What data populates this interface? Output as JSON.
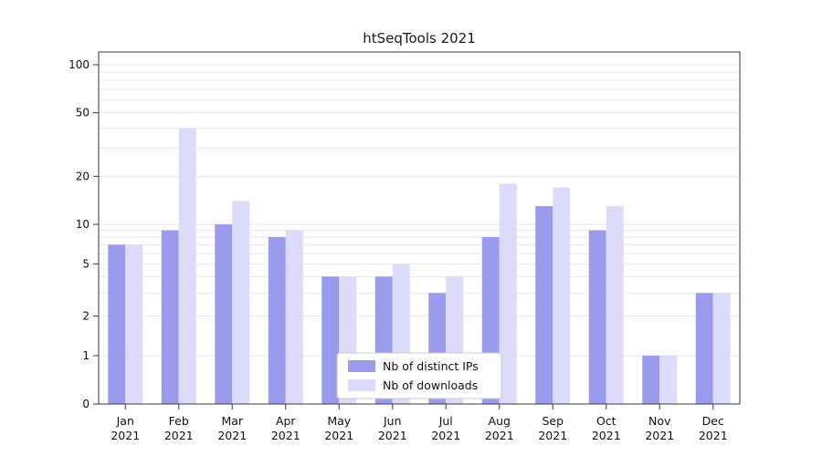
{
  "chart_data": {
    "type": "bar",
    "title": "htSeqTools 2021",
    "categories": [
      "Jan 2021",
      "Feb 2021",
      "Mar 2021",
      "Apr 2021",
      "May 2021",
      "Jun 2021",
      "Jul 2021",
      "Aug 2021",
      "Sep 2021",
      "Oct 2021",
      "Nov 2021",
      "Dec 2021"
    ],
    "series": [
      {
        "name": "Nb of distinct IPs",
        "color": "#9b9bee",
        "values": [
          7,
          9,
          10,
          8,
          4,
          4,
          3,
          8,
          13,
          9,
          1,
          3
        ]
      },
      {
        "name": "Nb of downloads",
        "color": "#dcdcfa",
        "values": [
          7,
          40,
          14,
          9,
          4,
          5,
          4,
          18,
          17,
          13,
          1,
          3
        ]
      }
    ],
    "yscale": "symlog",
    "ylim": [
      0,
      100
    ],
    "y_ticks": [
      0,
      1,
      2,
      5,
      10,
      20,
      50,
      100
    ],
    "minor_gridlines": [
      1,
      2,
      3,
      4,
      5,
      6,
      7,
      8,
      9,
      10,
      20,
      30,
      40,
      50,
      60,
      70,
      80,
      90,
      100
    ],
    "grid": true,
    "legend_position": "lower center"
  }
}
